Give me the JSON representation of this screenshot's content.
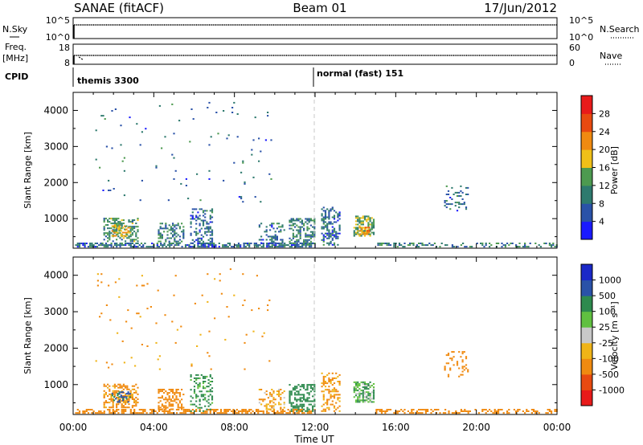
{
  "header": {
    "station": "SANAE (fitACF)",
    "beam": "Beam 01",
    "date": "17/Jun/2012"
  },
  "param_panels": {
    "nsky_label": "N.Sky",
    "nsky_ticks": [
      "10^5",
      "10^0"
    ],
    "nsearch_label": "N.Search",
    "nsearch_ticks": [
      "10^5",
      "10^0"
    ],
    "freq_label": "Freq.",
    "freq_unit": "[MHz]",
    "freq_ticks": [
      "18",
      "8"
    ],
    "nave_label": "Nave",
    "nave_ticks": [
      "60",
      "0"
    ],
    "cpid_label": "CPID",
    "cpid_programs": [
      {
        "name": "themis 3300",
        "start_hour": 0
      },
      {
        "name": "normal (fast) 151",
        "start_hour": 12
      }
    ]
  },
  "x_axis": {
    "label": "Time UT",
    "ticks": [
      "00:00",
      "04:00",
      "08:00",
      "12:00",
      "16:00",
      "20:00",
      "00:00"
    ],
    "range_hours": [
      0,
      24
    ]
  },
  "chart_data": [
    {
      "type": "heatmap",
      "name": "power",
      "ylabel": "Slant Range [km]",
      "y_ticks": [
        "1000",
        "2000",
        "3000",
        "4000"
      ],
      "ylim_km": [
        180,
        4500
      ],
      "xlim_hours": [
        0,
        24
      ],
      "colorbar": {
        "label": "Power [dB]",
        "ticks": [
          "4",
          "8",
          "12",
          "16",
          "20",
          "24",
          "28"
        ],
        "range": [
          0,
          32
        ],
        "colors": [
          "#1a1aff",
          "#2a52a8",
          "#2e7a6e",
          "#4d9a50",
          "#f0c018",
          "#f08a10",
          "#e84a10",
          "#e81a1a"
        ]
      },
      "clusters": [
        {
          "t0": 0.1,
          "t1": 12.0,
          "r0": 200,
          "r1": 330,
          "value": 8,
          "density": 0.6
        },
        {
          "t0": 1.5,
          "t1": 3.2,
          "r0": 350,
          "r1": 1000,
          "value": 12,
          "density": 0.5
        },
        {
          "t0": 1.9,
          "t1": 2.8,
          "r0": 500,
          "r1": 800,
          "value": 18,
          "density": 0.6
        },
        {
          "t0": 4.2,
          "t1": 5.5,
          "r0": 300,
          "r1": 850,
          "value": 10,
          "density": 0.45
        },
        {
          "t0": 5.8,
          "t1": 6.9,
          "r0": 250,
          "r1": 1250,
          "value": 8,
          "density": 0.35
        },
        {
          "t0": 9.2,
          "t1": 10.5,
          "r0": 300,
          "r1": 850,
          "value": 8,
          "density": 0.35
        },
        {
          "t0": 10.7,
          "t1": 12.0,
          "r0": 250,
          "r1": 1000,
          "value": 10,
          "density": 0.5
        },
        {
          "t0": 12.3,
          "t1": 13.2,
          "r0": 250,
          "r1": 1300,
          "value": 8,
          "density": 0.4
        },
        {
          "t0": 13.9,
          "t1": 14.9,
          "r0": 500,
          "r1": 1050,
          "value": 14,
          "density": 0.6
        },
        {
          "t0": 14.2,
          "t1": 14.7,
          "r0": 550,
          "r1": 750,
          "value": 22,
          "density": 0.6
        },
        {
          "t0": 15.0,
          "t1": 24.0,
          "r0": 200,
          "r1": 320,
          "value": 10,
          "density": 0.35
        },
        {
          "t0": 18.4,
          "t1": 19.6,
          "r0": 1200,
          "r1": 1900,
          "value": 8,
          "density": 0.2
        },
        {
          "t0": 1.1,
          "t1": 9.8,
          "r0": 1400,
          "r1": 4200,
          "value": 8,
          "density": 0.012
        }
      ]
    },
    {
      "type": "heatmap",
      "name": "velocity",
      "ylabel": "Slant Range [km]",
      "y_ticks": [
        "1000",
        "2000",
        "3000",
        "4000"
      ],
      "ylim_km": [
        180,
        4500
      ],
      "xlim_hours": [
        0,
        24
      ],
      "colorbar": {
        "label": "Velocity [m s⁻¹]",
        "ticks": [
          "1000",
          "500",
          "100",
          "25",
          "-25",
          "-100",
          "-500",
          "-1000"
        ],
        "range": [
          -1250,
          1250
        ],
        "colors": [
          "#e81a1a",
          "#e84a10",
          "#f08a10",
          "#f0b418",
          "#c8c8c8",
          "#60c040",
          "#2e8a4e",
          "#2a52a8",
          "#1a28c8"
        ]
      },
      "clusters": [
        {
          "t0": 0.1,
          "t1": 12.0,
          "r0": 200,
          "r1": 330,
          "value": -300,
          "density": 0.55
        },
        {
          "t0": 1.5,
          "t1": 3.2,
          "r0": 350,
          "r1": 1000,
          "value": -150,
          "density": 0.5
        },
        {
          "t0": 1.9,
          "t1": 2.8,
          "r0": 500,
          "r1": 800,
          "value": 600,
          "density": 0.4
        },
        {
          "t0": 4.2,
          "t1": 5.5,
          "r0": 300,
          "r1": 850,
          "value": -200,
          "density": 0.45
        },
        {
          "t0": 5.8,
          "t1": 6.9,
          "r0": 250,
          "r1": 1250,
          "value": 150,
          "density": 0.3
        },
        {
          "t0": 9.2,
          "t1": 10.5,
          "r0": 300,
          "r1": 850,
          "value": -100,
          "density": 0.35
        },
        {
          "t0": 10.7,
          "t1": 12.0,
          "r0": 250,
          "r1": 1000,
          "value": 300,
          "density": 0.5
        },
        {
          "t0": 12.3,
          "t1": 13.2,
          "r0": 250,
          "r1": 1300,
          "value": -150,
          "density": 0.4
        },
        {
          "t0": 13.9,
          "t1": 14.9,
          "r0": 500,
          "r1": 1050,
          "value": 80,
          "density": 0.6
        },
        {
          "t0": 15.0,
          "t1": 24.0,
          "r0": 200,
          "r1": 320,
          "value": -200,
          "density": 0.4
        },
        {
          "t0": 18.4,
          "t1": 19.6,
          "r0": 1200,
          "r1": 1900,
          "value": -200,
          "density": 0.2
        },
        {
          "t0": 1.1,
          "t1": 9.8,
          "r0": 1400,
          "r1": 4200,
          "value": -150,
          "density": 0.012
        }
      ]
    }
  ]
}
